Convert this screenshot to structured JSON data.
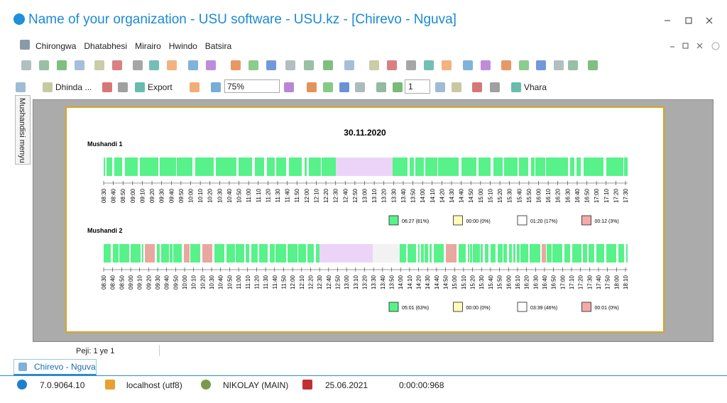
{
  "window": {
    "title": "Name of your organization - USU software - USU.kz - [Chirevo - Nguva]"
  },
  "menu": [
    "Chirongwa",
    "Dhatabhesi",
    "Mirairo",
    "Hwindo",
    "Batsira"
  ],
  "toolbar": {
    "print": "Dhinda ...",
    "export": "Export",
    "zoom": "75%",
    "page": "1",
    "close": "Vhara"
  },
  "side_tab": "Mushandisi menyu",
  "report": {
    "date": "30.11.2020",
    "workers": [
      {
        "name": "Mushandi 1",
        "times": [
          "08:30",
          "08:40",
          "08:50",
          "09:00",
          "09:10",
          "09:20",
          "09:30",
          "09:40",
          "09:50",
          "10:00",
          "10:10",
          "10:20",
          "10:30",
          "10:40",
          "10:50",
          "11:00",
          "11:10",
          "11:20",
          "11:30",
          "11:40",
          "11:50",
          "12:00",
          "12:10",
          "12:20",
          "12:30",
          "12:40",
          "12:50",
          "13:00",
          "13:10",
          "13:20",
          "13:30",
          "13:40",
          "13:50",
          "14:00",
          "14:10",
          "14:20",
          "14:30",
          "14:40",
          "14:50",
          "15:00",
          "15:10",
          "15:20",
          "15:30",
          "15:40",
          "15:50",
          "16:00",
          "16:10",
          "16:20",
          "16:30",
          "16:40",
          "16:50",
          "17:00",
          "17:10",
          "17:20",
          "17:30"
        ],
        "legend": [
          "06:27 (81%)",
          "00:00 (0%)",
          "01:20 (17%)",
          "00:12 (3%)"
        ]
      },
      {
        "name": "Mushandi 2",
        "times": [
          "08:30",
          "08:40",
          "08:50",
          "09:00",
          "09:10",
          "09:20",
          "09:30",
          "09:40",
          "09:50",
          "10:00",
          "10:10",
          "10:20",
          "10:30",
          "10:40",
          "10:50",
          "11:00",
          "11:10",
          "11:20",
          "11:30",
          "11:40",
          "11:50",
          "12:00",
          "12:10",
          "12:20",
          "12:30",
          "12:40",
          "12:50",
          "13:00",
          "13:10",
          "13:20",
          "13:30",
          "13:40",
          "13:50",
          "14:00",
          "14:10",
          "14:20",
          "14:30",
          "14:40",
          "14:50",
          "15:00",
          "15:10",
          "15:20",
          "15:30",
          "15:40",
          "15:50",
          "16:00",
          "16:10",
          "16:20",
          "16:30",
          "16:40",
          "16:50",
          "17:00",
          "17:10",
          "17:20",
          "17:30",
          "17:40",
          "17:50",
          "18:00",
          "18:10"
        ],
        "legend": [
          "05:01 (63%)",
          "00:00 (0%)",
          "03:39 (46%)",
          "00:01 (0%)"
        ]
      }
    ]
  },
  "status": {
    "page": "Peji: 1 ye 1",
    "tab": "Chirevo - Nguva",
    "version": "7.0.9064.10",
    "server": "localhost (utf8)",
    "user": "NIKOLAY (MAIN)",
    "date": "25.06.2021",
    "elapsed": "0:00:00:968"
  }
}
